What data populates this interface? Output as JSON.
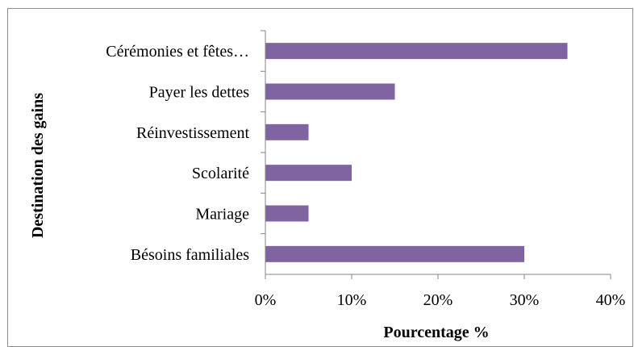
{
  "chart_data": {
    "type": "bar",
    "orientation": "horizontal",
    "categories": [
      "Cérémonies et fêtes…",
      "Payer les dettes",
      "Réinvestissement",
      "Scolarité",
      "Mariage",
      "Bésoins familiales"
    ],
    "values": [
      35,
      15,
      5,
      10,
      5,
      30
    ],
    "xlabel": "Pourcentage %",
    "ylabel": "Destination des gains",
    "xlim": [
      0,
      40
    ],
    "xticks": [
      "0%",
      "10%",
      "20%",
      "30%",
      "40%"
    ],
    "grid": false,
    "legend": "none",
    "colors": {
      "bar": "#8064a2",
      "axis": "#868686"
    }
  }
}
